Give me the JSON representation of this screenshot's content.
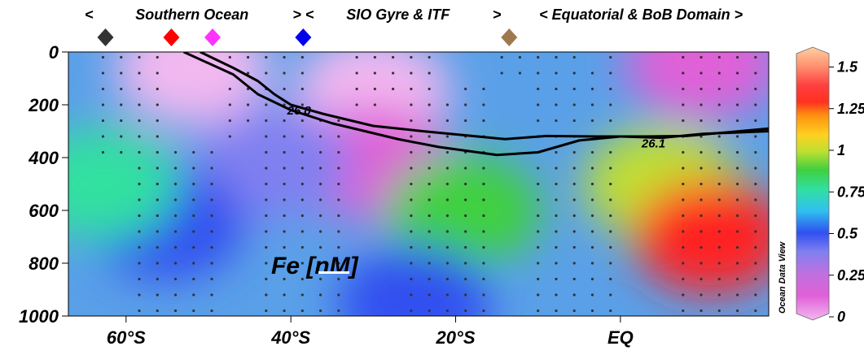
{
  "chart_data": {
    "type": "heatmap",
    "variable_label": "Fe [nM]",
    "x_tick_labels": [
      {
        "value": -60,
        "label": "60°S"
      },
      {
        "value": -40,
        "label": "40°S"
      },
      {
        "value": -20,
        "label": "20°S"
      },
      {
        "value": 0,
        "label": "EQ"
      }
    ],
    "xlim": [
      -67,
      18
    ],
    "y_tick_labels": [
      {
        "value": 0,
        "label": "0"
      },
      {
        "value": 200,
        "label": "200"
      },
      {
        "value": 400,
        "label": "400"
      },
      {
        "value": 600,
        "label": "600"
      },
      {
        "value": 800,
        "label": "800"
      },
      {
        "value": 1000,
        "label": "1000"
      }
    ],
    "ylim": [
      1000,
      0
    ],
    "y_inverted": true,
    "colorbar": {
      "ticks": [
        {
          "value": 1.5,
          "label": "1.5"
        },
        {
          "value": 1.25,
          "label": "1.25"
        },
        {
          "value": 1,
          "label": "1"
        },
        {
          "value": 0.75,
          "label": "0.75"
        },
        {
          "value": 0.5,
          "label": "0.5"
        },
        {
          "value": 0.25,
          "label": "0.25"
        },
        {
          "value": 0,
          "label": "0"
        }
      ],
      "range": [
        0,
        1.6
      ],
      "label": "Ocean Data View"
    },
    "domains": [
      {
        "label": "<",
        "lat": -64.5
      },
      {
        "label": "Southern Ocean",
        "lat": -52
      },
      {
        "label": "> <",
        "lat": -38.5
      },
      {
        "label": "SIO Gyre & ITF",
        "lat": -27
      },
      {
        "label": ">",
        "lat": -15
      },
      {
        "label": "< Equatorial & BoB Domain >",
        "lat": 2.5
      }
    ],
    "station_markers": [
      {
        "lat": -62.5,
        "color": "#333333"
      },
      {
        "lat": -54.5,
        "color": "#ff0000"
      },
      {
        "lat": -49.5,
        "color": "#ff33ff"
      },
      {
        "lat": -38.5,
        "color": "#0000ee"
      },
      {
        "lat": -13.5,
        "color": "#a07850"
      }
    ],
    "contours": [
      {
        "label": "26.1",
        "points": [
          [
            -53,
            0
          ],
          [
            -47,
            85
          ],
          [
            -44,
            160
          ],
          [
            -40,
            220
          ],
          [
            -35,
            270
          ],
          [
            -27,
            330
          ],
          [
            -22,
            360
          ],
          [
            -15,
            390
          ],
          [
            -10,
            380
          ],
          [
            -5,
            335
          ],
          [
            0,
            320
          ],
          [
            5,
            325
          ],
          [
            10,
            310
          ],
          [
            18,
            300
          ]
        ]
      },
      {
        "label": "26.8",
        "points": [
          [
            -51,
            0
          ],
          [
            -47,
            60
          ],
          [
            -44,
            110
          ],
          [
            -42,
            160
          ],
          [
            -40,
            200
          ],
          [
            -36,
            235
          ],
          [
            -30,
            280
          ],
          [
            -24,
            300
          ],
          [
            -19,
            315
          ],
          [
            -14,
            330
          ],
          [
            -9,
            318
          ],
          [
            -3,
            320
          ],
          [
            3,
            320
          ],
          [
            8,
            318
          ],
          [
            18,
            290
          ]
        ]
      }
    ],
    "field_regions": [
      {
        "lat": -52,
        "depth": 60,
        "value": 0.1
      },
      {
        "lat": -30,
        "depth": 150,
        "value": 0.05
      },
      {
        "lat": -30,
        "depth": 420,
        "value": 0.25
      },
      {
        "lat": 10,
        "depth": 40,
        "value": 0.2
      },
      {
        "lat": -42,
        "depth": 420,
        "value": 0.48
      },
      {
        "lat": -55,
        "depth": 650,
        "value": 0.55
      },
      {
        "lat": -63,
        "depth": 500,
        "value": 0.75
      },
      {
        "lat": -19,
        "depth": 600,
        "value": 0.78
      },
      {
        "lat": 5,
        "depth": 500,
        "value": 0.95
      },
      {
        "lat": 11,
        "depth": 700,
        "value": 1.25
      },
      {
        "lat": -25,
        "depth": 950,
        "value": 0.6
      }
    ]
  }
}
